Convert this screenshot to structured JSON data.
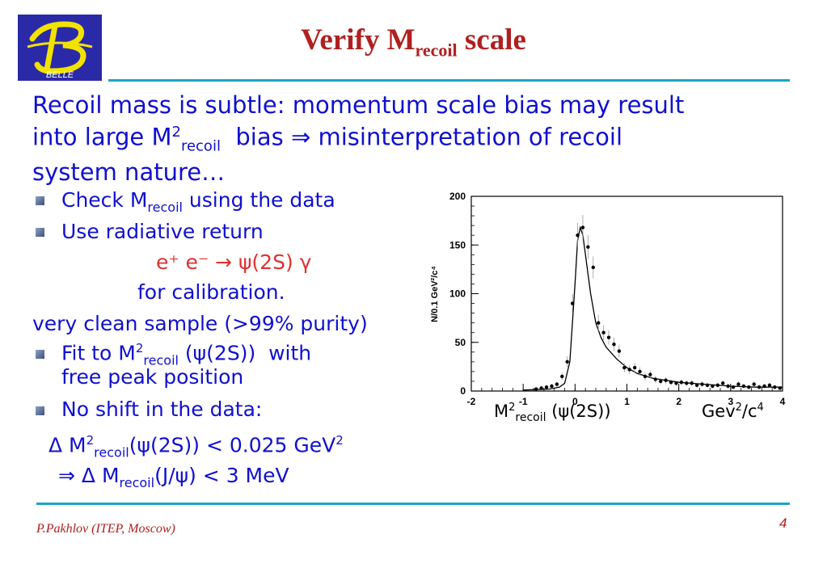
{
  "logo": {
    "text": "BELLE"
  },
  "title": {
    "main": "Verify M",
    "sub": "recoil",
    "tail": " scale"
  },
  "intro": {
    "line1": "Recoil mass is subtle: momentum scale bias may result",
    "line2_a": "into large M",
    "line2_sup": "2",
    "line2_sub": "recoil",
    "line2_b": "  bias ",
    "line2_arrow": "⇒",
    "line2_c": " misinterpretation of recoil",
    "line3": "system nature…"
  },
  "bullets": {
    "b1_a": "Check M",
    "b1_sub": "recoil",
    "b1_b": " using the data",
    "b2": "Use radiative return",
    "reaction": "e⁺ e⁻ → ψ(2S) γ",
    "calib": "for calibration.",
    "clean": "very clean sample (>99% purity)",
    "b3_a": "Fit to M",
    "b3_sup": "2",
    "b3_sub": "recoil",
    "b3_b": " (ψ(2S))  with",
    "b3_c": "free peak position",
    "b4": "No shift in the data:",
    "res1_a": "Δ M",
    "res1_sup": "2",
    "res1_sub": "recoil",
    "res1_b": "(ψ(2S)) < 0.025 GeV",
    "res1_sup2": "2",
    "res2_a": "⇒ Δ M",
    "res2_sub": "recoil",
    "res2_b": "(J/ψ) < 3 MeV"
  },
  "plot_labels": {
    "xlab_a": "M",
    "xlab_sup": "2",
    "xlab_sub": "recoil",
    "xlab_b": " (ψ(2S))",
    "xunit_a": "Gev",
    "xunit_sup": "2",
    "xunit_b": "/c",
    "xunit_sup2": "4",
    "ylabel": "N/0.1 GeV²/c⁴"
  },
  "chart_data": {
    "type": "scatter",
    "xlim": [
      -2,
      4
    ],
    "ylim": [
      0,
      200
    ],
    "xticks": [
      "-2",
      "-1",
      "0",
      "1",
      "2",
      "3",
      "4"
    ],
    "yticks": [
      "0",
      "50",
      "100",
      "150",
      "200"
    ],
    "ylabel": "N/0.1 GeV²/c⁴",
    "series": [
      {
        "values_x": [
          -0.75,
          -0.65,
          -0.55,
          -0.45,
          -0.35,
          -0.25,
          -0.15,
          -0.05,
          0.05,
          0.15,
          0.25,
          0.35,
          0.45,
          0.55,
          0.65,
          0.75,
          0.85,
          0.95,
          1.05,
          1.15,
          1.25,
          1.35,
          1.45,
          1.55,
          1.65,
          1.75,
          1.85,
          1.95,
          2.05,
          2.15,
          2.25,
          2.35,
          2.45,
          2.55,
          2.65,
          2.75,
          2.85,
          2.95,
          3.05,
          3.15,
          3.25,
          3.35,
          3.45,
          3.55,
          3.65,
          3.75,
          3.85,
          3.95
        ],
        "values_y": [
          2,
          3,
          4,
          5,
          7,
          15,
          30,
          90,
          160,
          168,
          148,
          127,
          70,
          60,
          55,
          48,
          41,
          24,
          22,
          24,
          20,
          15,
          17,
          12,
          10,
          11,
          9,
          8,
          9,
          8,
          8,
          6,
          7,
          6,
          5,
          6,
          8,
          5,
          4,
          7,
          5,
          4,
          7,
          4,
          5,
          6,
          4,
          3
        ]
      },
      {
        "name": "fit",
        "values_x": [
          -1,
          -0.5,
          -0.3,
          -0.2,
          -0.1,
          0,
          0.05,
          0.1,
          0.15,
          0.2,
          0.3,
          0.4,
          0.5,
          0.6,
          0.8,
          1,
          1.2,
          1.5,
          2,
          2.5,
          3,
          3.5,
          4
        ],
        "values_y": [
          1,
          2,
          4,
          8,
          30,
          110,
          155,
          168,
          160,
          140,
          100,
          70,
          55,
          45,
          33,
          24,
          18,
          13,
          9,
          7,
          5,
          4,
          4
        ]
      }
    ]
  }
}
